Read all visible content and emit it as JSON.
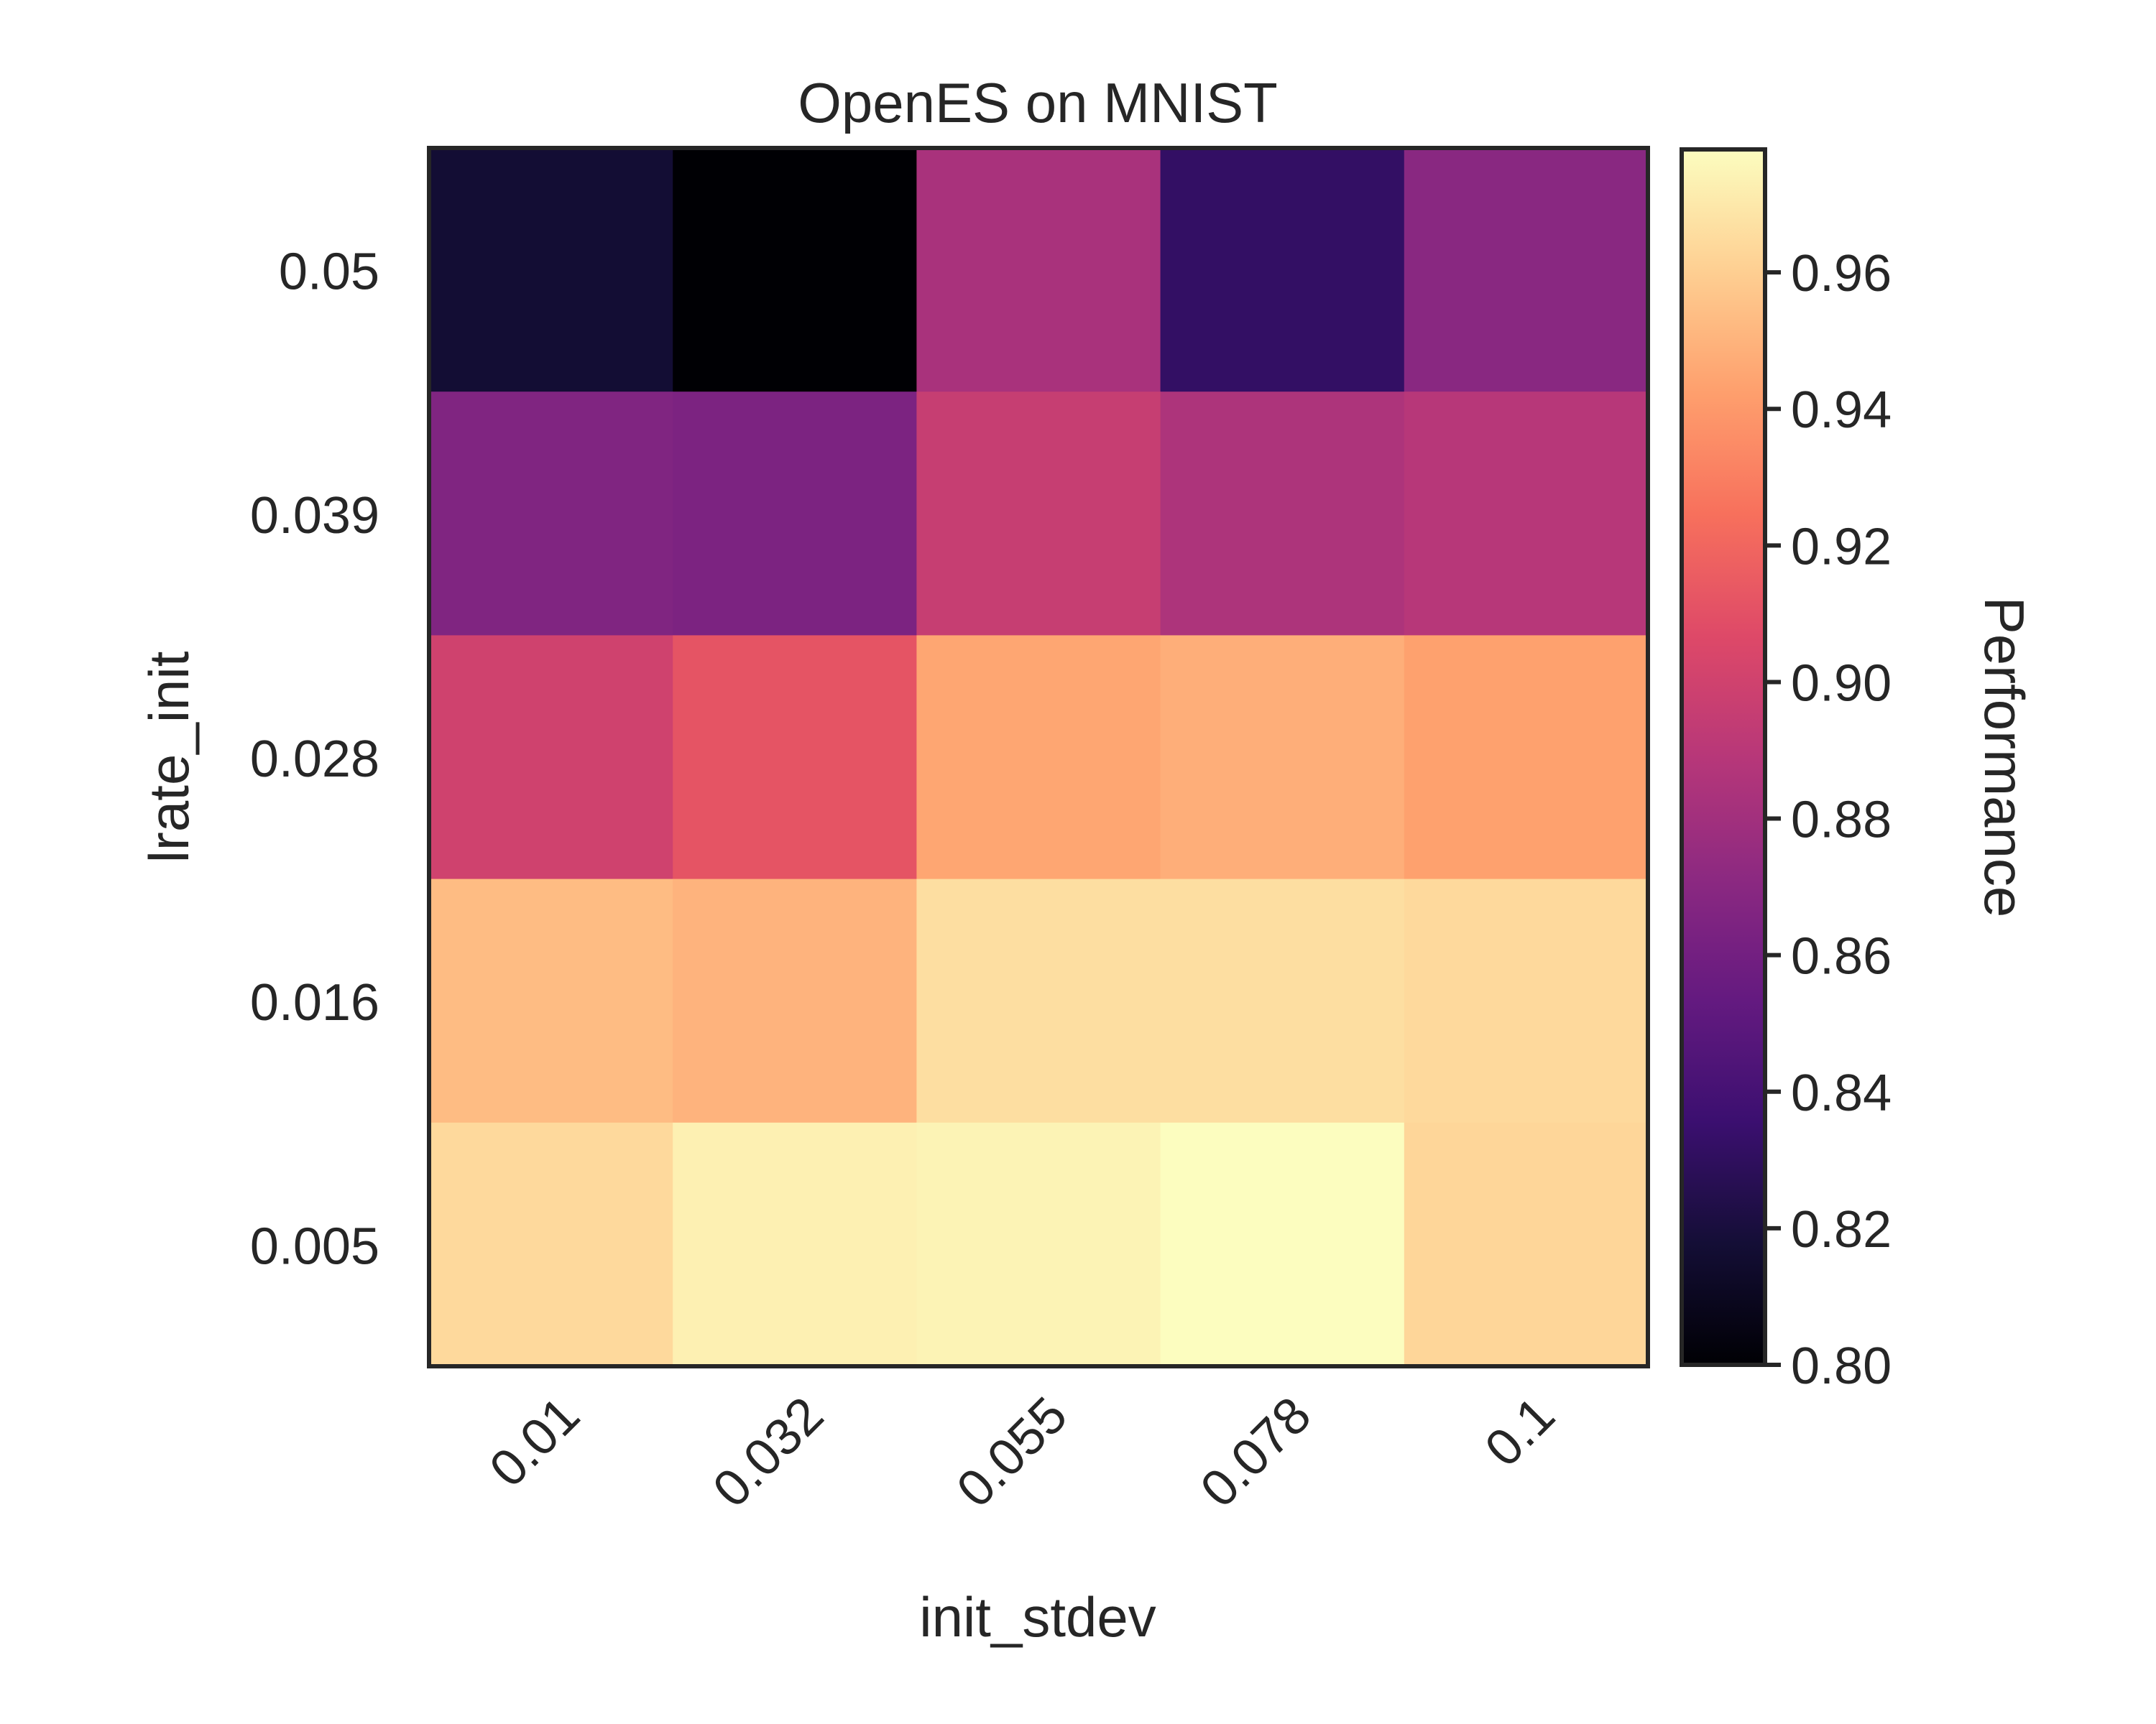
{
  "chart_data": {
    "type": "heatmap",
    "title": "OpenES on MNIST",
    "xlabel": "init_stdev",
    "ylabel": "lrate_init",
    "x_categories": [
      "0.01",
      "0.032",
      "0.055",
      "0.078",
      "0.1"
    ],
    "y_categories": [
      "0.05",
      "0.039",
      "0.028",
      "0.016",
      "0.005"
    ],
    "values": [
      [
        0.817,
        0.8,
        0.883,
        0.832,
        0.87
      ],
      [
        0.866,
        0.864,
        0.896,
        0.885,
        0.889
      ],
      [
        0.9,
        0.912,
        0.945,
        0.948,
        0.943
      ],
      [
        0.953,
        0.95,
        0.966,
        0.966,
        0.964
      ],
      [
        0.964,
        0.973,
        0.974,
        0.978,
        0.963
      ]
    ],
    "colormap": "magma",
    "colorbar": {
      "label": "Performance",
      "range": [
        0.8,
        0.978
      ],
      "ticks": [
        "0.80",
        "0.82",
        "0.84",
        "0.86",
        "0.88",
        "0.90",
        "0.92",
        "0.94",
        "0.96"
      ]
    }
  }
}
